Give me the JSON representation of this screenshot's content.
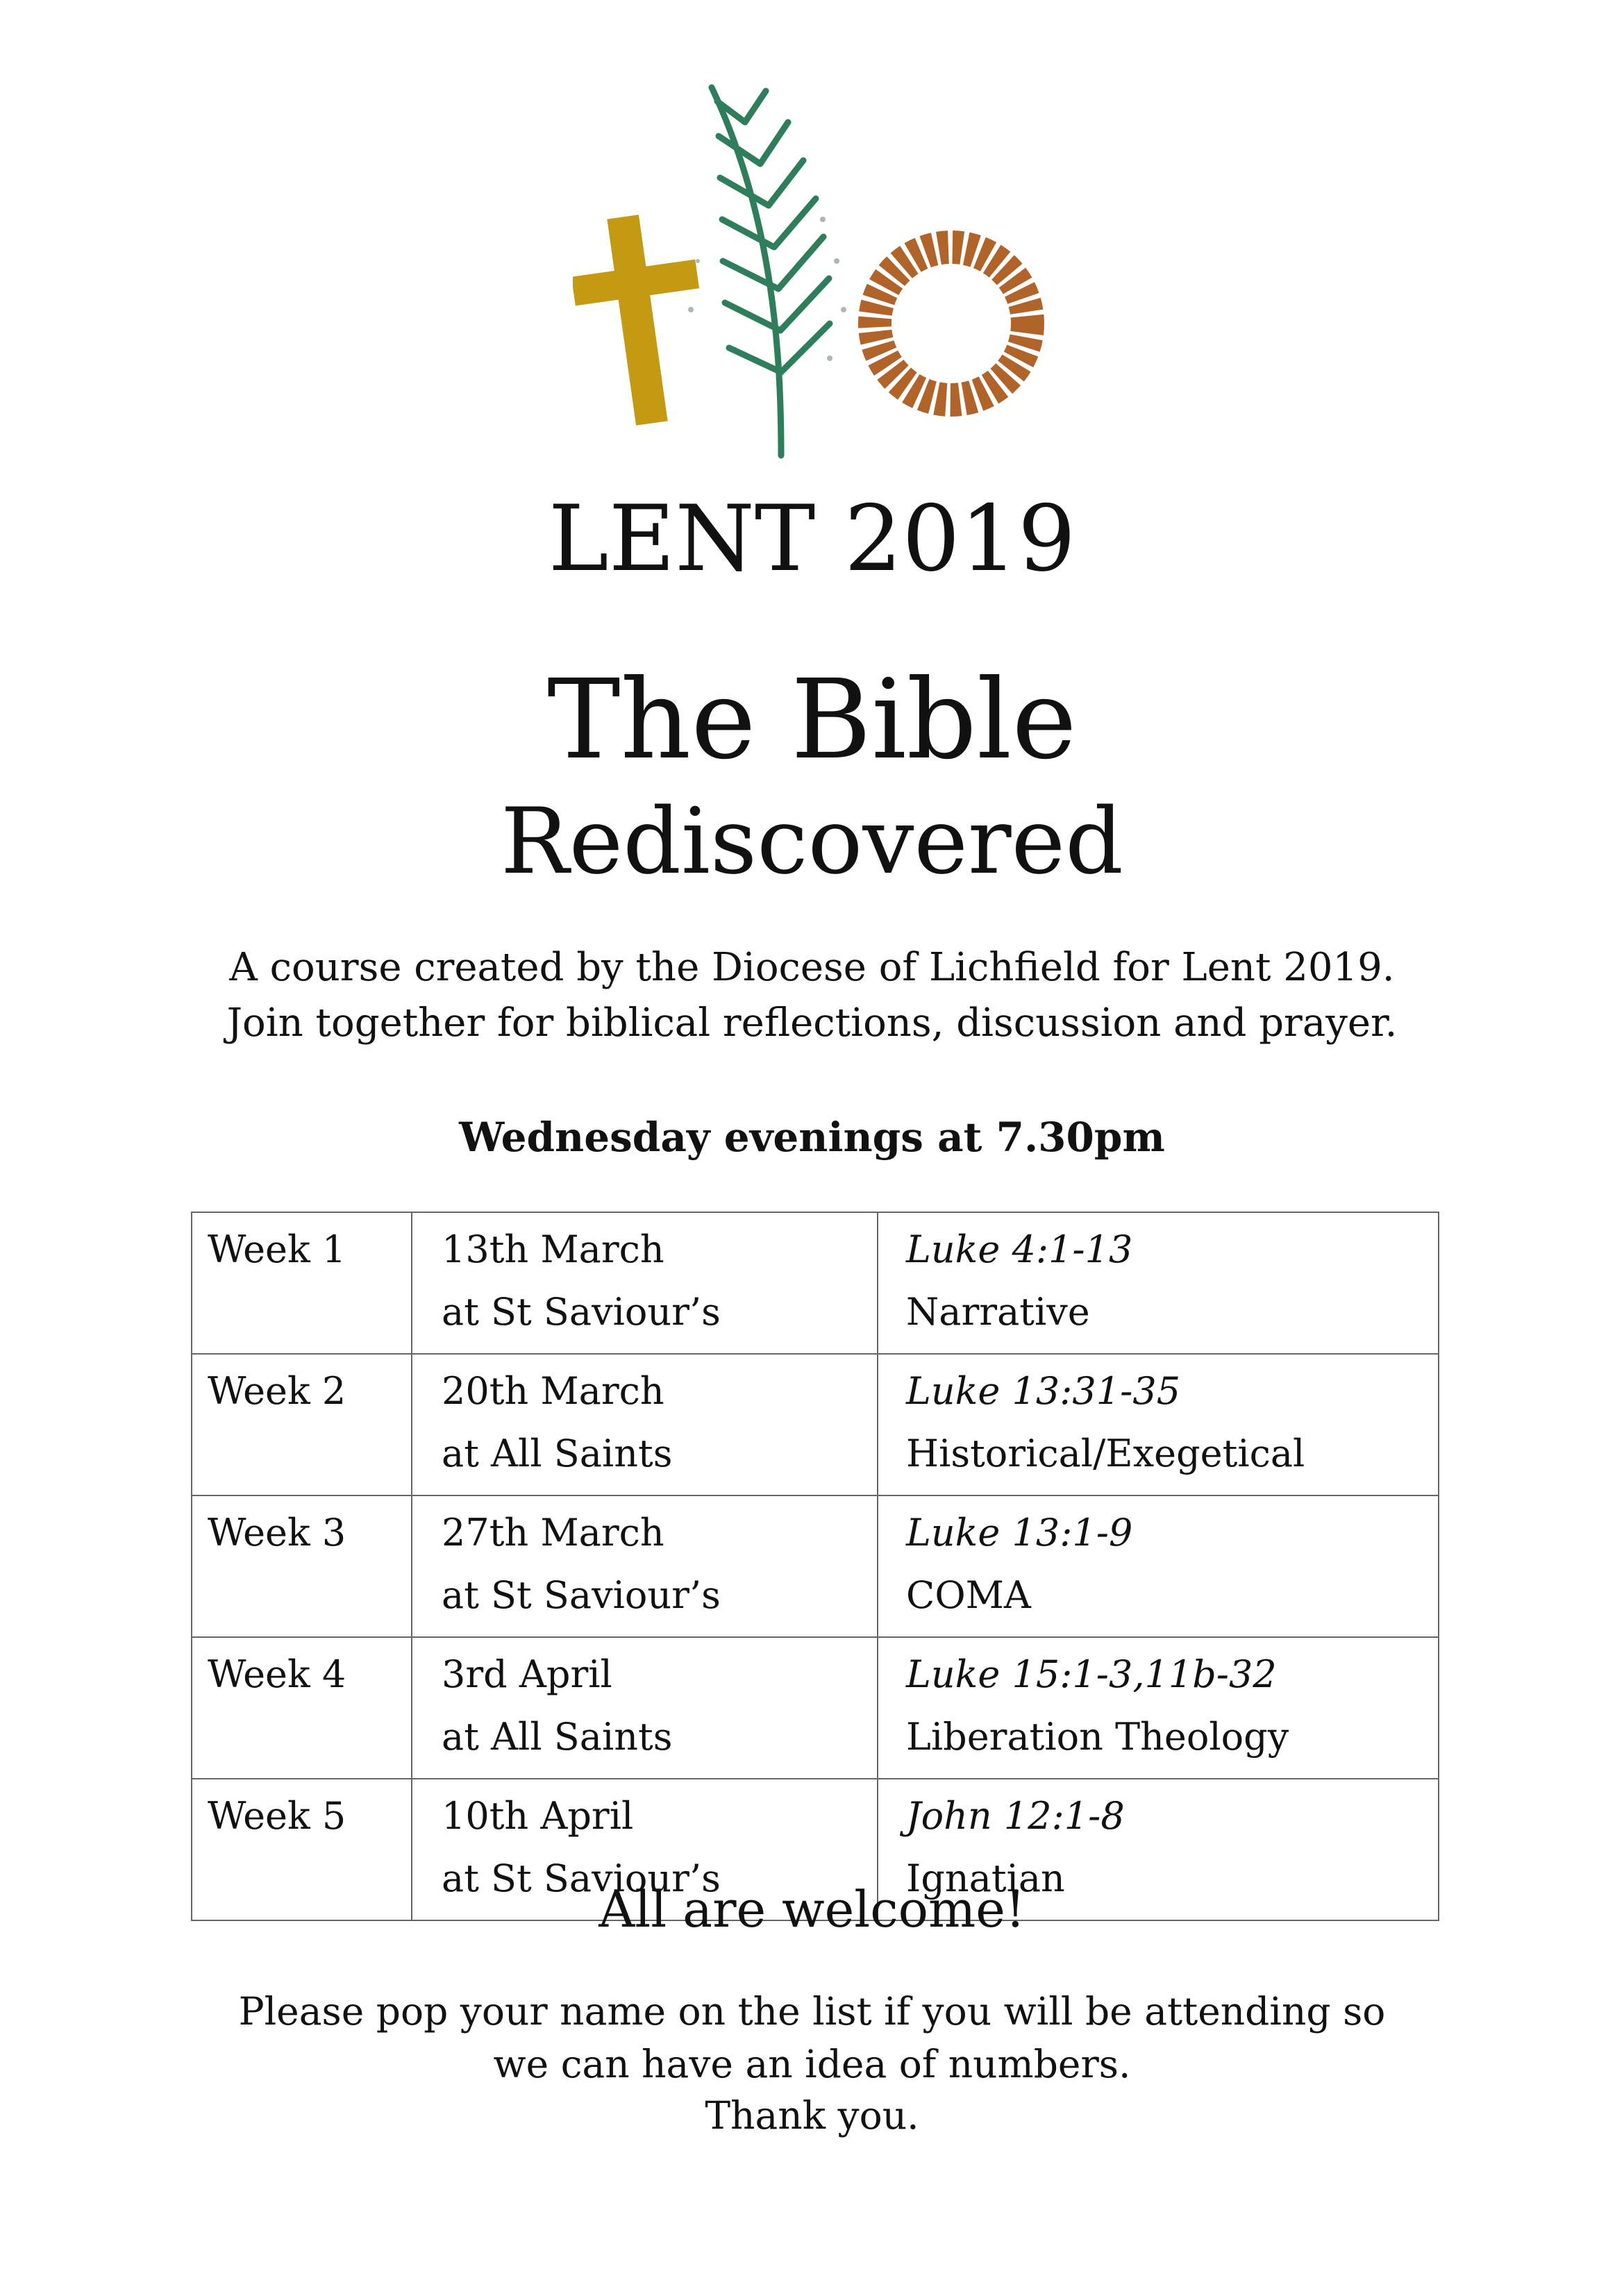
{
  "header": {
    "season": "LENT 2019",
    "title_line1": "The Bible",
    "title_line2": "Rediscovered"
  },
  "intro": {
    "lines": [
      "A course created by the Diocese of Lichfield for Lent 2019.",
      "Join together for biblical reflections, discussion and prayer."
    ]
  },
  "schedule": {
    "heading": "Wednesday evenings at 7.30pm",
    "rows": [
      {
        "week": "Week 1",
        "date": "13th March",
        "venue": "at St Saviour’s",
        "reading": "Luke 4:1-13",
        "approach": "Narrative"
      },
      {
        "week": "Week 2",
        "date": "20th March",
        "venue": "at All Saints",
        "reading": "Luke 13:31-35",
        "approach": "Historical/Exegetical"
      },
      {
        "week": "Week 3",
        "date": "27th March",
        "venue": "at St Saviour’s",
        "reading": "Luke 13:1-9",
        "approach": "COMA"
      },
      {
        "week": "Week 4",
        "date": "3rd April",
        "venue": "at All Saints",
        "reading": "Luke 15:1-3,11b-32",
        "approach": "Liberation Theology"
      },
      {
        "week": "Week 5",
        "date": "10th April",
        "venue": "at St Saviour’s",
        "reading": "John 12:1-8",
        "approach": "Ignatian"
      }
    ]
  },
  "footer": {
    "welcome": "All are welcome!",
    "lines": [
      "Please pop your name on the list if you will be attending so",
      "we can have an idea of numbers.",
      "Thank you."
    ]
  }
}
